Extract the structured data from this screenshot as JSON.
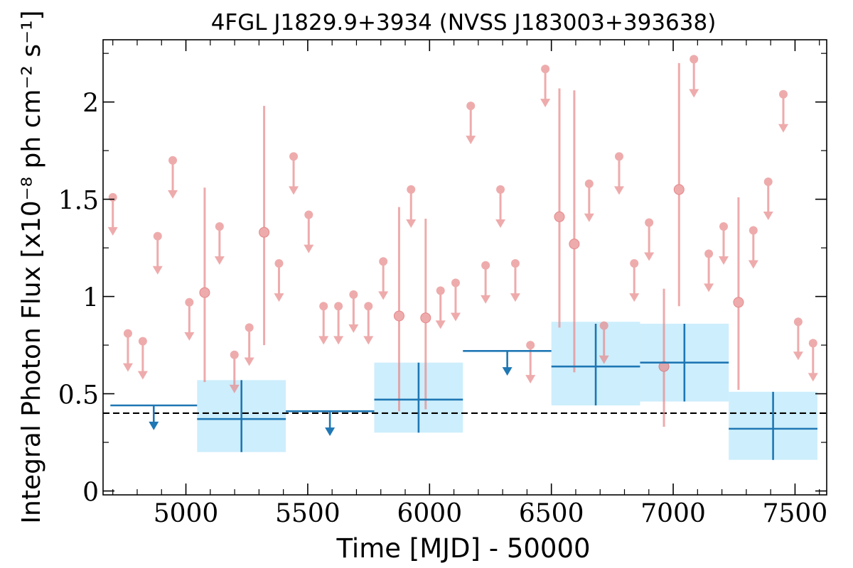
{
  "chart_data": {
    "type": "scatter",
    "title": "4FGL J1829.9+3934 (NVSS J183003+393638)",
    "xlabel": "Time [MJD] - 50000",
    "ylabel": "Integral Photon Flux [x10⁻⁸ ph cm⁻² s⁻¹]",
    "xlim": [
      4660,
      7630
    ],
    "ylim": [
      -0.02,
      2.32
    ],
    "xticks": [
      5000,
      5500,
      6000,
      6500,
      7000,
      7500
    ],
    "xtick_labels": [
      "5000",
      "5500",
      "6000",
      "6500",
      "7000",
      "7500"
    ],
    "yticks": [
      0,
      0.5,
      1,
      1.5,
      2
    ],
    "ytick_labels": [
      "0",
      "0.5",
      "1",
      "1.5",
      "2"
    ],
    "grid": false,
    "colors": {
      "short_bins": "#e8888a",
      "long_bins": "#1f77b4",
      "long_bins_band": "#cdeefc",
      "reference_line": "#000000"
    },
    "reference_line": {
      "y": 0.4,
      "style": "dashed"
    },
    "series": [
      {
        "points": [
          {
            "x": 5077,
            "y": 1.02,
            "ylo": 0.56,
            "yhi": 1.56
          },
          {
            "x": 5321,
            "y": 1.33,
            "ylo": 0.75,
            "yhi": 1.98
          },
          {
            "x": 5875,
            "y": 0.9,
            "ylo": 0.41,
            "yhi": 1.46
          },
          {
            "x": 5984,
            "y": 0.89,
            "ylo": 0.42,
            "yhi": 1.4
          },
          {
            "x": 6533,
            "y": 1.41,
            "ylo": 0.84,
            "yhi": 2.07
          },
          {
            "x": 6594,
            "y": 1.27,
            "ylo": 0.61,
            "yhi": 2.06
          },
          {
            "x": 6962,
            "y": 0.64,
            "ylo": 0.33,
            "yhi": 1.04
          },
          {
            "x": 7024,
            "y": 1.55,
            "ylo": 0.95,
            "yhi": 2.2
          },
          {
            "x": 7268,
            "y": 0.97,
            "ylo": 0.52,
            "yhi": 1.51
          }
        ],
        "upper_limits": [
          {
            "x": 4700,
            "y": 1.51
          },
          {
            "x": 4762,
            "y": 0.81
          },
          {
            "x": 4823,
            "y": 0.77
          },
          {
            "x": 4884,
            "y": 1.31
          },
          {
            "x": 4946,
            "y": 1.7
          },
          {
            "x": 5014,
            "y": 0.97
          },
          {
            "x": 5138,
            "y": 1.36
          },
          {
            "x": 5199,
            "y": 0.7
          },
          {
            "x": 5260,
            "y": 0.84
          },
          {
            "x": 5382,
            "y": 1.17
          },
          {
            "x": 5442,
            "y": 1.72
          },
          {
            "x": 5504,
            "y": 1.42
          },
          {
            "x": 5565,
            "y": 0.95
          },
          {
            "x": 5626,
            "y": 0.95
          },
          {
            "x": 5688,
            "y": 1.01
          },
          {
            "x": 5749,
            "y": 0.95
          },
          {
            "x": 5810,
            "y": 1.18
          },
          {
            "x": 5924,
            "y": 1.55
          },
          {
            "x": 6045,
            "y": 1.03
          },
          {
            "x": 6107,
            "y": 1.07
          },
          {
            "x": 6169,
            "y": 1.98
          },
          {
            "x": 6230,
            "y": 1.16
          },
          {
            "x": 6291,
            "y": 1.55
          },
          {
            "x": 6352,
            "y": 1.17
          },
          {
            "x": 6414,
            "y": 0.75
          },
          {
            "x": 6475,
            "y": 2.17
          },
          {
            "x": 6655,
            "y": 1.58
          },
          {
            "x": 6716,
            "y": 0.85
          },
          {
            "x": 6778,
            "y": 1.72
          },
          {
            "x": 6840,
            "y": 1.17
          },
          {
            "x": 6901,
            "y": 1.38
          },
          {
            "x": 7085,
            "y": 2.22
          },
          {
            "x": 7146,
            "y": 1.22
          },
          {
            "x": 7207,
            "y": 1.36
          },
          {
            "x": 7329,
            "y": 1.34
          },
          {
            "x": 7390,
            "y": 1.59
          },
          {
            "x": 7452,
            "y": 2.04
          },
          {
            "x": 7513,
            "y": 0.87
          },
          {
            "x": 7574,
            "y": 0.76
          }
        ]
      },
      {
        "bins": [
          {
            "x0": 4690,
            "x1": 5046,
            "xc": 4868,
            "y": 0.44,
            "upper_limit": true
          },
          {
            "x0": 5046,
            "x1": 5410,
            "xc": 5228,
            "y": 0.37,
            "ylo": 0.2,
            "yhi": 0.57,
            "band_lo": 0.2,
            "band_hi": 0.57
          },
          {
            "x0": 5410,
            "x1": 5773,
            "xc": 5591,
            "y": 0.41,
            "upper_limit": true
          },
          {
            "x0": 5773,
            "x1": 6137,
            "xc": 5955,
            "y": 0.47,
            "ylo": 0.3,
            "yhi": 0.66,
            "band_lo": 0.3,
            "band_hi": 0.66
          },
          {
            "x0": 6137,
            "x1": 6500,
            "xc": 6319,
            "y": 0.72,
            "upper_limit": true
          },
          {
            "x0": 6500,
            "x1": 6864,
            "xc": 6682,
            "y": 0.64,
            "ylo": 0.44,
            "yhi": 0.86,
            "band_lo": 0.44,
            "band_hi": 0.87
          },
          {
            "x0": 6864,
            "x1": 7228,
            "xc": 7046,
            "y": 0.66,
            "ylo": 0.46,
            "yhi": 0.86,
            "band_lo": 0.46,
            "band_hi": 0.86
          },
          {
            "x0": 7228,
            "x1": 7592,
            "xc": 7410,
            "y": 0.32,
            "ylo": 0.16,
            "yhi": 0.51,
            "band_lo": 0.16,
            "band_hi": 0.51
          }
        ]
      }
    ]
  }
}
